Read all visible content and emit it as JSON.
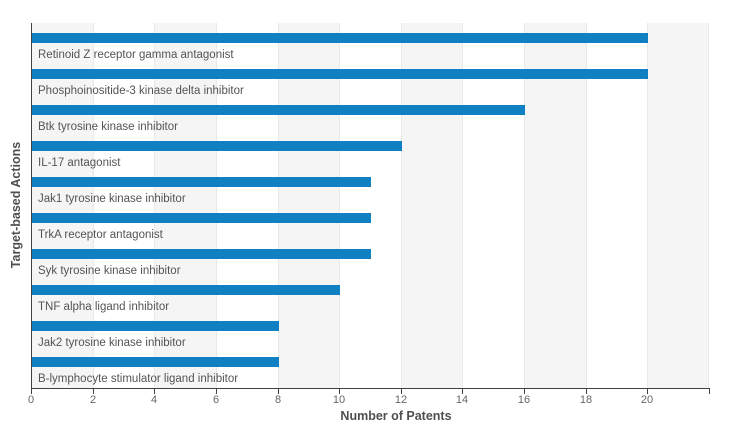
{
  "chart_data": {
    "type": "bar",
    "orientation": "horizontal",
    "title": "",
    "xlabel": "Number of Patents",
    "ylabel": "Target-based Actions",
    "categories": [
      "Retinoid Z receptor gamma antagonist",
      "Phosphoinositide-3 kinase delta inhibitor",
      "Btk tyrosine kinase inhibitor",
      "IL-17 antagonist",
      "Jak1 tyrosine kinase inhibitor",
      "TrkA receptor antagonist",
      "Syk tyrosine kinase inhibitor",
      "TNF alpha ligand inhibitor",
      "Jak2 tyrosine kinase inhibitor",
      "B-lymphocyte stimulator ligand inhibitor"
    ],
    "values": [
      20,
      20,
      16,
      12,
      11,
      11,
      11,
      10,
      8,
      8
    ],
    "xlim": [
      0,
      22
    ],
    "xticks": [
      0,
      2,
      4,
      6,
      8,
      10,
      12,
      14,
      16,
      18,
      20
    ],
    "grid": "alternating vertical bands every 2 units, gray on 0-2, 4-6, 8-10, 12-14, 16-18, 20-22",
    "legend": "none",
    "bar_color": "#0F80C1",
    "band_color": "#F5F5F5",
    "gridline_color": "#E9E9E9",
    "axis_color": "#424242",
    "category_label_color": "#545454",
    "tick_label_color": "#666666",
    "axis_title_color": "#4F4F4F"
  }
}
